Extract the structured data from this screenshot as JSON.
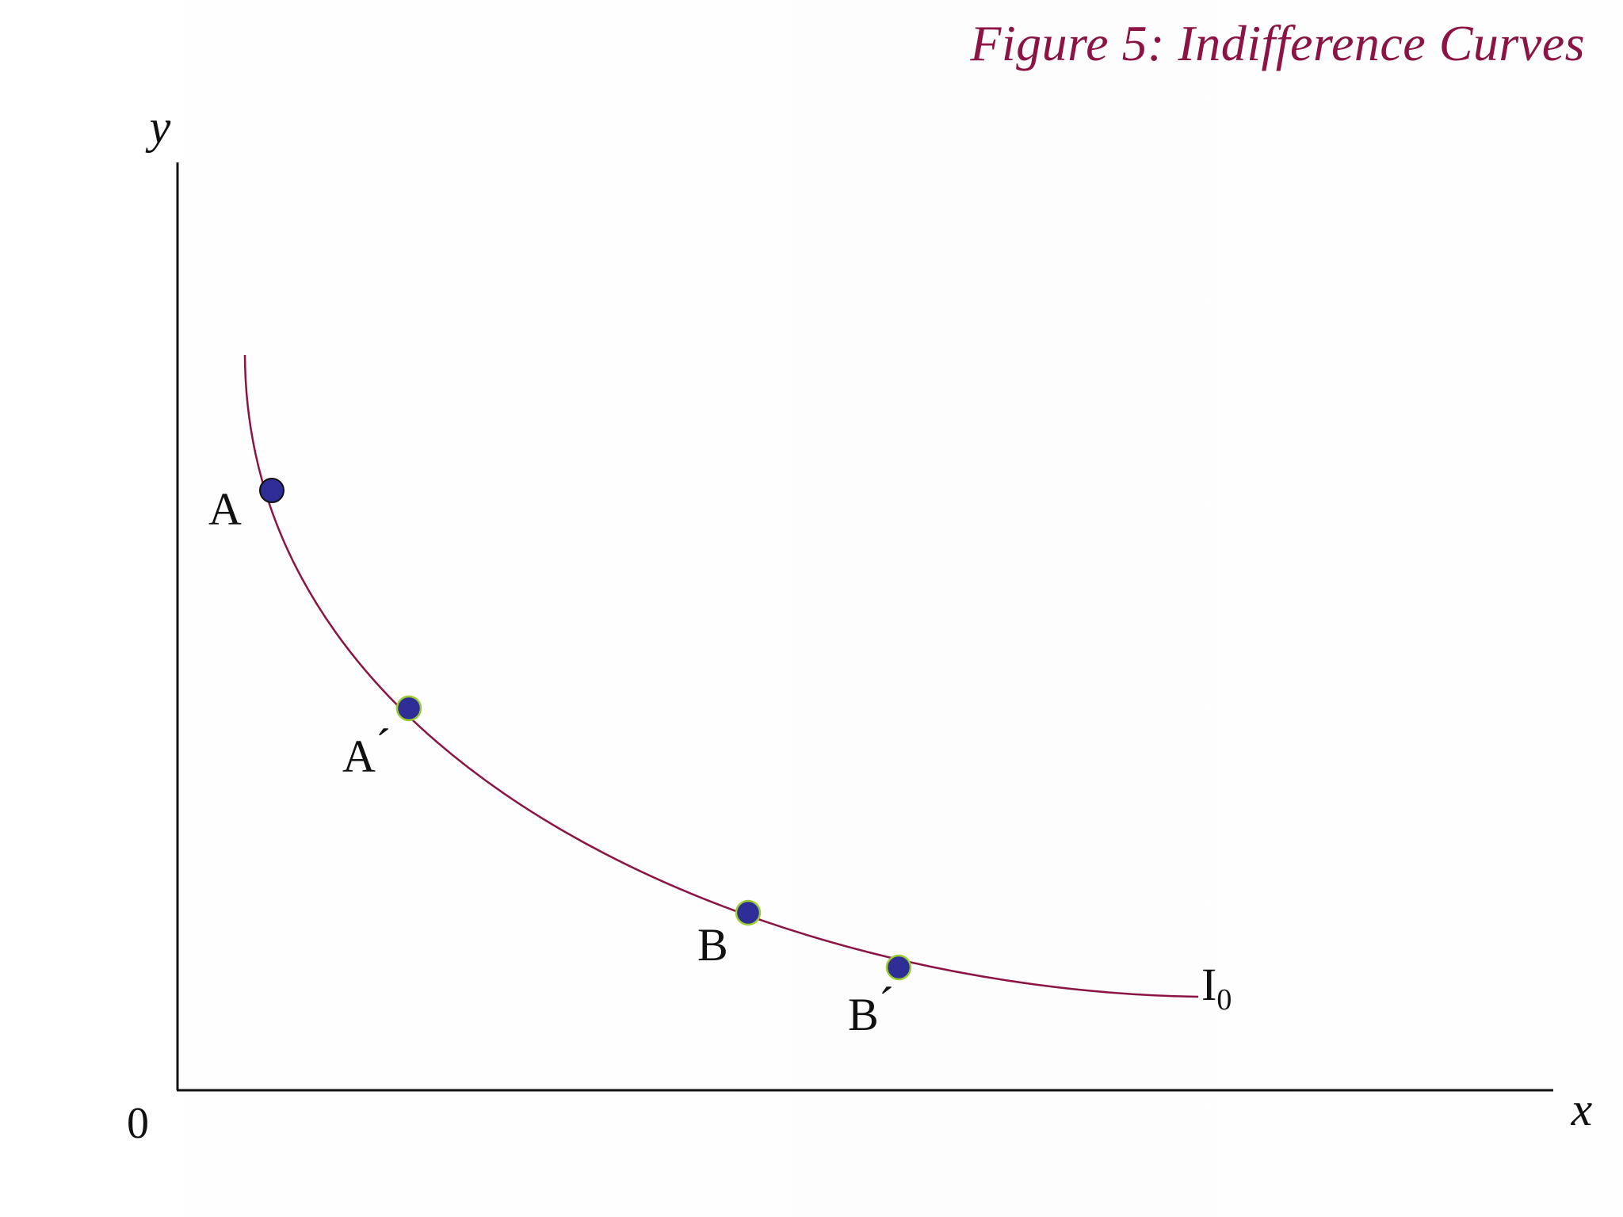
{
  "figure": {
    "title": "Figure 5: Indifference Curves"
  },
  "axes": {
    "y_label": "y",
    "x_label": "x",
    "origin_label": "0"
  },
  "curve": {
    "label_main": "I",
    "label_sub": "0",
    "color": "#8b1445"
  },
  "points": [
    {
      "id": "A",
      "label": "A",
      "prime": ""
    },
    {
      "id": "A-prime",
      "label": "A",
      "prime": "´"
    },
    {
      "id": "B",
      "label": "B",
      "prime": ""
    },
    {
      "id": "B-prime",
      "label": "B",
      "prime": "´"
    }
  ],
  "colors": {
    "point_fill": "#2e2e96",
    "axis": "#111111"
  }
}
